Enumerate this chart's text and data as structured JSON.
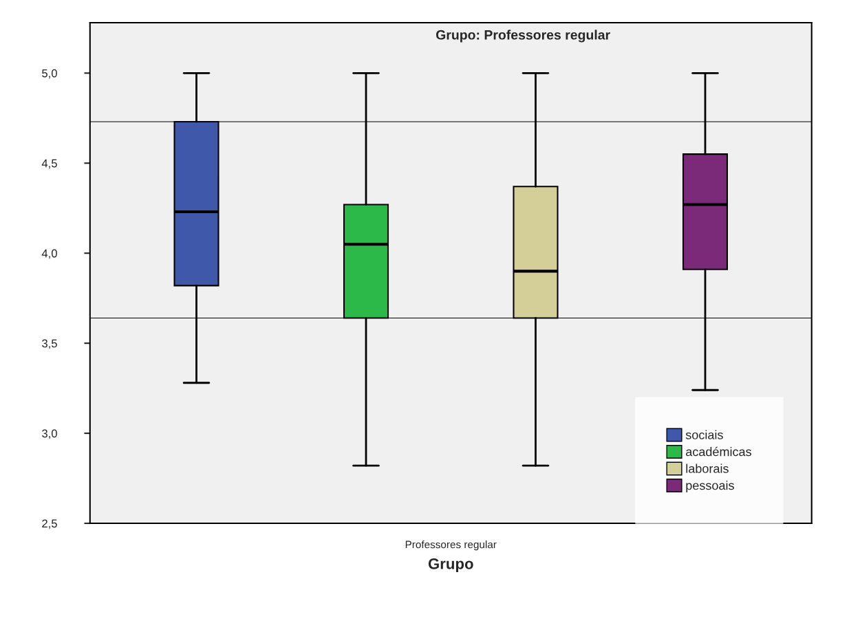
{
  "chart_data": {
    "type": "box",
    "title": "Grupo: Professores regular",
    "xlabel": "Grupo",
    "categories": [
      "Professores regular"
    ],
    "series": [
      {
        "name": "sociais",
        "color": "#3f58aa",
        "boxes": [
          {
            "low": 3.28,
            "q1": 3.82,
            "median": 4.23,
            "q3": 4.73,
            "high": 5.0
          }
        ]
      },
      {
        "name": "académicas",
        "color": "#2db84a",
        "boxes": [
          {
            "low": 2.82,
            "q1": 3.64,
            "median": 4.05,
            "q3": 4.27,
            "high": 5.0
          }
        ]
      },
      {
        "name": "laborais",
        "color": "#d4cf98",
        "boxes": [
          {
            "low": 2.82,
            "q1": 3.64,
            "median": 3.9,
            "q3": 4.37,
            "high": 5.0
          }
        ]
      },
      {
        "name": "pessoais",
        "color": "#7b2a7a",
        "boxes": [
          {
            "low": 3.24,
            "q1": 3.91,
            "median": 4.27,
            "q3": 4.55,
            "high": 5.0
          }
        ]
      }
    ],
    "ylim": [
      2.5,
      5.28
    ],
    "yticks": [
      {
        "value": 2.5,
        "label": "2,5"
      },
      {
        "value": 3.0,
        "label": "3,0"
      },
      {
        "value": 3.5,
        "label": "3,5"
      },
      {
        "value": 4.0,
        "label": "4,0"
      },
      {
        "value": 4.5,
        "label": "4,5"
      },
      {
        "value": 5.0,
        "label": "5,0"
      }
    ],
    "ref_lines": [
      {
        "axis": "y",
        "value": 4.73,
        "color": "#000000"
      },
      {
        "axis": "y",
        "value": 3.64,
        "color": "#000000"
      }
    ],
    "legend": "bottom right",
    "grid": false
  }
}
